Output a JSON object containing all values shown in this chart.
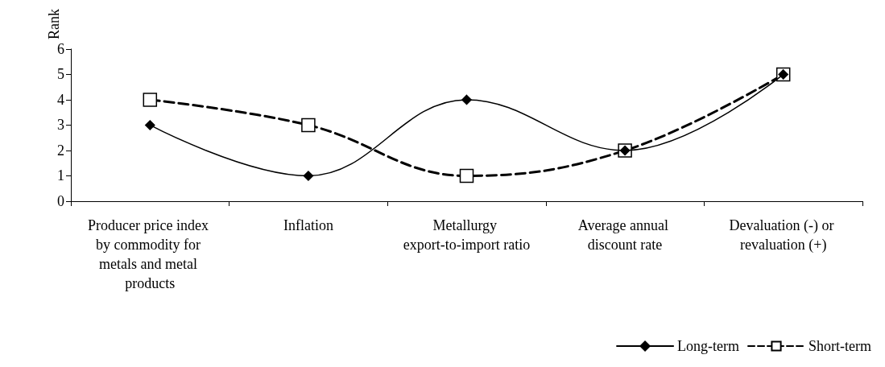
{
  "chart_data": {
    "type": "line",
    "ylabel": "Rank",
    "categories": [
      "Producer price index by commodity for metals and metal products",
      "Inflation",
      "Metallurgy export-to-import ratio",
      "Average annual discount rate",
      "Devaluation (-) or revaluation (+)"
    ],
    "series": [
      {
        "name": "Long-term",
        "color": "#000000",
        "marker": "diamond",
        "line_style": "solid",
        "values": [
          3,
          1,
          4,
          2,
          5
        ]
      },
      {
        "name": "Short-term",
        "color": "#000000",
        "marker": "square",
        "line_style": "dashed",
        "values": [
          4,
          3,
          1,
          2,
          5
        ]
      }
    ],
    "ylim": [
      0,
      6
    ],
    "yticks": [
      0,
      1,
      2,
      3,
      4,
      5,
      6
    ],
    "grid": false,
    "legend": "bottom right"
  }
}
